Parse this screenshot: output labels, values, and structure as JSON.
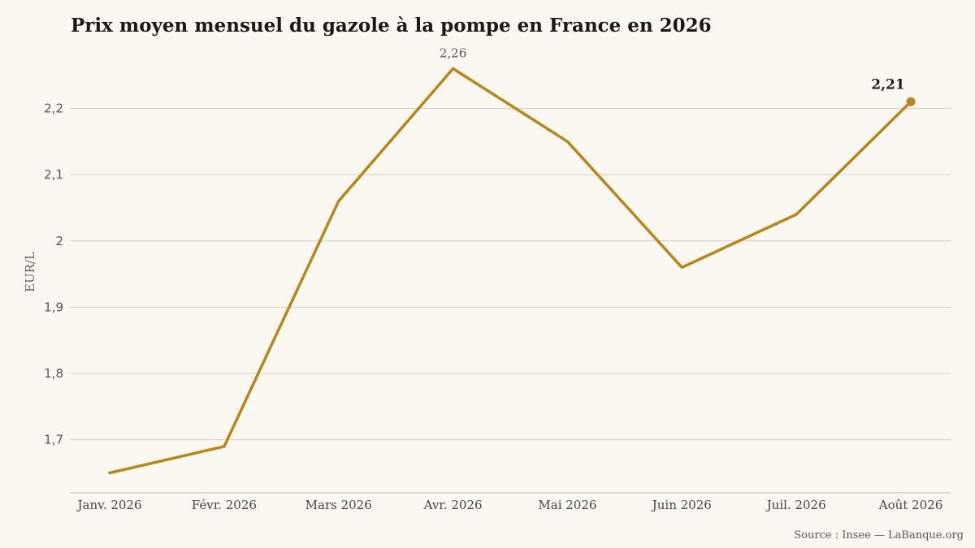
{
  "chart_data": {
    "type": "line",
    "title": "Prix moyen mensuel du gazole à la pompe en France en 2026",
    "ylabel": "EUR/L",
    "xlabel": "",
    "categories": [
      "Janv. 2026",
      "Févr. 2026",
      "Mars 2026",
      "Avr. 2026",
      "Mai 2026",
      "Juin 2026",
      "Juil. 2026",
      "Août 2026"
    ],
    "series": [
      {
        "values": [
          1.65,
          1.69,
          2.06,
          2.26,
          2.15,
          1.96,
          2.04,
          2.21
        ],
        "color": "#b8871b"
      }
    ],
    "ylim": [
      1.62,
      2.29
    ],
    "yticks": [
      1.7,
      1.8,
      1.9,
      2.0,
      2.1,
      2.2
    ],
    "ytick_labels": [
      "1,7",
      "1,8",
      "1,9",
      "2",
      "2,1",
      "2,2"
    ],
    "grid": true,
    "annotations": [
      {
        "label": "2,26",
        "category": "Avr. 2026",
        "value": 2.26,
        "style": "max"
      },
      {
        "label": "2,21",
        "category": "Août 2026",
        "value": 2.21,
        "style": "last"
      }
    ],
    "source": "Source : Insee — LaBanque.org"
  }
}
